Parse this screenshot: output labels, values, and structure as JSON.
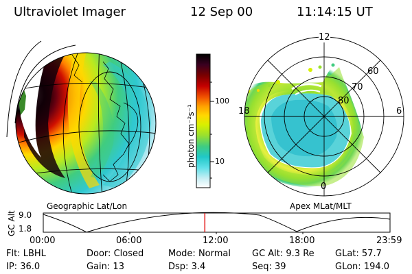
{
  "header": {
    "instrument": "Ultraviolet Imager",
    "date": "12 Sep 00",
    "time": "11:14:15 UT"
  },
  "colorbar": {
    "unit_label": "photon cm⁻²s⁻¹",
    "ticks": [
      "100",
      "10"
    ],
    "colors": [
      "#000000",
      "#3a0020",
      "#7a0000",
      "#c40000",
      "#f05000",
      "#ffa000",
      "#ffd800",
      "#d8f000",
      "#98e030",
      "#40cc80",
      "#20c8c8",
      "#60e0e8",
      "#c8eef4",
      "#ffffff"
    ]
  },
  "left_panel": {
    "label": "Geographic Lat/Lon"
  },
  "right_panel": {
    "label": "Apex MLat/MLT",
    "mlt_labels": {
      "top": "12",
      "left": "18",
      "right": "6",
      "bottom": "0"
    },
    "lat_labels": [
      "60",
      "70",
      "80"
    ]
  },
  "altitude_strip": {
    "axis_label": "GC Alt",
    "y_ticks": [
      "9.0",
      "1.8"
    ],
    "time_ticks": [
      "00:00",
      "06:00",
      "12:00",
      "18:00",
      "23:59"
    ],
    "current_time_fraction": 0.466
  },
  "footer": {
    "row1": [
      {
        "label": "Flt:",
        "value": "LBHL"
      },
      {
        "label": "Door:",
        "value": "Closed"
      },
      {
        "label": "Mode:",
        "value": "Normal"
      },
      {
        "label": "GC Alt:",
        "value": "9.3 Re"
      },
      {
        "label": "GLat:",
        "value": "57.7"
      }
    ],
    "row2": [
      {
        "label": "IP:",
        "value": "36.0"
      },
      {
        "label": "Gain:",
        "value": "13"
      },
      {
        "label": "Dsp:",
        "value": "3.4"
      },
      {
        "label": "Seq:",
        "value": "39"
      },
      {
        "label": "GLon:",
        "value": "194.0"
      }
    ]
  }
}
